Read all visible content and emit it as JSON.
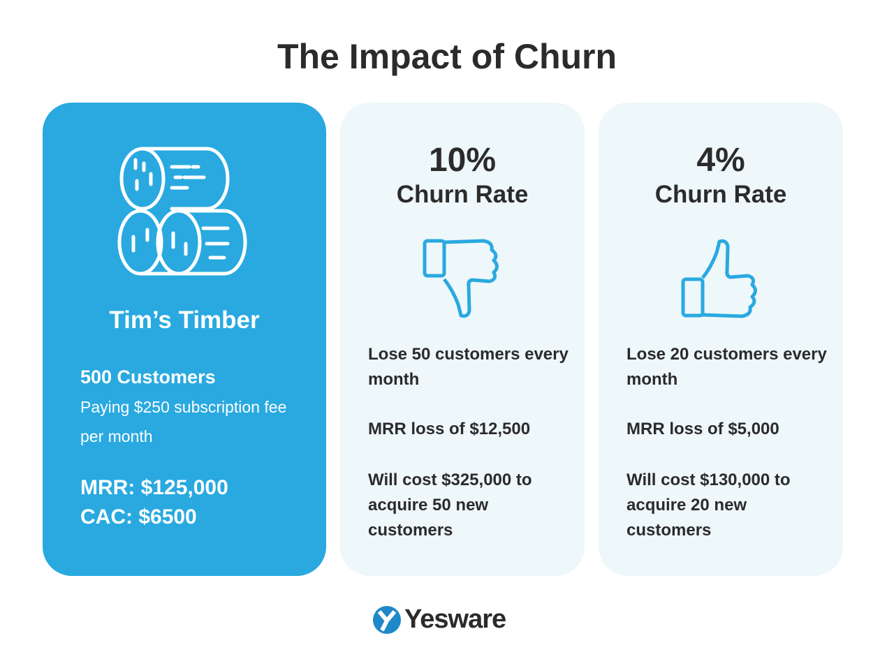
{
  "title": "The Impact of Churn",
  "company": {
    "name": "Tim’s Timber",
    "customers": "500 Customers",
    "fee": "Paying $250 subscription fee per month",
    "mrr": "MRR: $125,000",
    "cac": "CAC: $6500",
    "icon": "logs-icon"
  },
  "scenarios": [
    {
      "rate": "10%",
      "label": "Churn Rate",
      "icon": "thumbs-down-icon",
      "lose": "Lose 50 customers every month",
      "mrr_loss": "MRR loss of $12,500",
      "cost": "Will cost $325,000 to acquire 50 new customers"
    },
    {
      "rate": "4%",
      "label": "Churn Rate",
      "icon": "thumbs-up-icon",
      "lose": "Lose 20 customers every month",
      "mrr_loss": "MRR loss of $5,000",
      "cost": "Will cost $130,000 to acquire 20 new customers"
    }
  ],
  "brand": {
    "name": "Yesware",
    "color": "#1e88c8"
  },
  "colors": {
    "accent": "#29a9e0",
    "card_bg": "#eef7fa",
    "text": "#2b2b2b"
  }
}
